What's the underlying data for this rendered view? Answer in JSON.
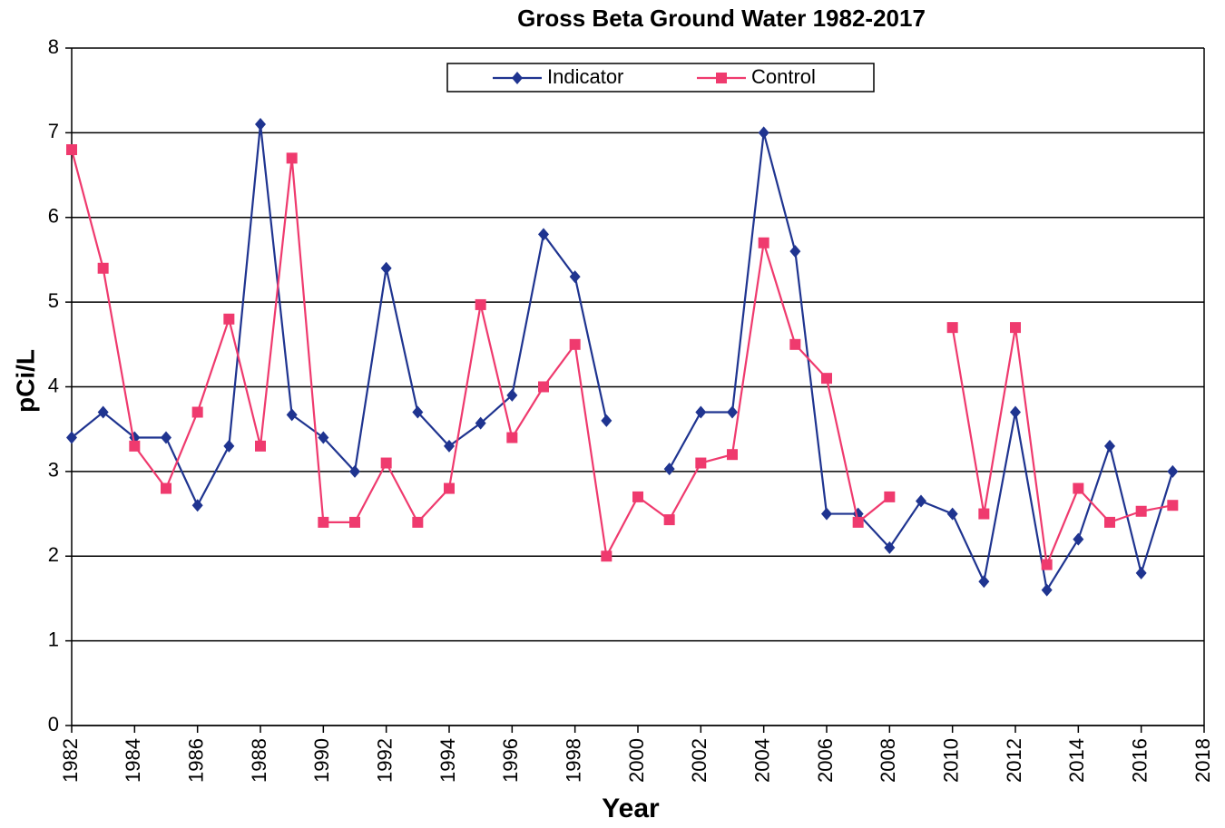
{
  "chart_data": {
    "type": "line",
    "title": "Gross Beta Ground Water 1982-2017",
    "xlabel": "Year",
    "ylabel": "pCi/L",
    "x": [
      1982,
      1983,
      1984,
      1985,
      1986,
      1987,
      1988,
      1989,
      1990,
      1991,
      1992,
      1993,
      1994,
      1995,
      1996,
      1997,
      1998,
      1999,
      2000,
      2001,
      2002,
      2003,
      2004,
      2005,
      2006,
      2007,
      2008,
      2009,
      2010,
      2011,
      2012,
      2013,
      2014,
      2015,
      2016,
      2017
    ],
    "series": [
      {
        "name": "Indicator",
        "color": "#1f3490",
        "marker": "diamond",
        "values": [
          3.4,
          3.7,
          3.4,
          3.4,
          2.6,
          3.3,
          7.1,
          3.67,
          3.4,
          3.0,
          5.4,
          3.7,
          3.3,
          3.57,
          3.9,
          5.8,
          5.3,
          3.6,
          null,
          3.03,
          3.7,
          3.7,
          7.0,
          5.6,
          2.5,
          2.5,
          2.1,
          2.65,
          2.5,
          1.7,
          3.7,
          1.6,
          2.2,
          3.3,
          1.8,
          3.0
        ]
      },
      {
        "name": "Control",
        "color": "#ef3a6e",
        "marker": "square",
        "values": [
          6.8,
          5.4,
          3.3,
          2.8,
          3.7,
          4.8,
          3.3,
          6.7,
          2.4,
          2.4,
          3.1,
          2.4,
          2.8,
          4.97,
          3.4,
          4.0,
          4.5,
          2.0,
          2.7,
          2.43,
          3.1,
          3.2,
          5.7,
          4.5,
          4.1,
          2.4,
          2.7,
          null,
          4.7,
          2.5,
          4.7,
          1.9,
          2.8,
          2.4,
          2.53,
          2.6
        ]
      }
    ],
    "xlim": [
      1982,
      2018
    ],
    "xticks": [
      1982,
      1984,
      1986,
      1988,
      1990,
      1992,
      1994,
      1996,
      1998,
      2000,
      2002,
      2004,
      2006,
      2008,
      2010,
      2012,
      2014,
      2016,
      2018
    ],
    "ylim": [
      0,
      8
    ],
    "yticks": [
      0,
      1,
      2,
      3,
      4,
      5,
      6,
      7,
      8
    ],
    "grid": true,
    "legend": "top"
  }
}
